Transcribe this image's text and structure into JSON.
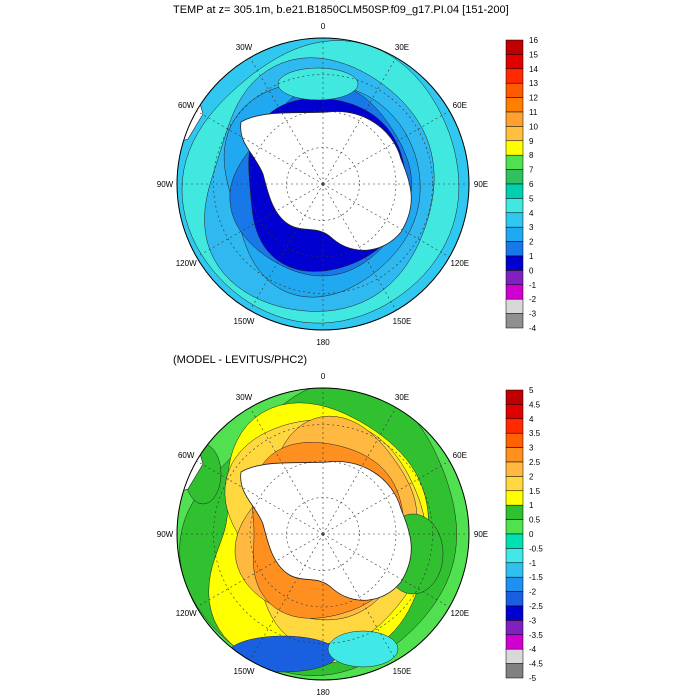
{
  "top_panel": {
    "title": "TEMP at z= 305.1m, b.e21.B1850CLM50SP.f09_g17.PI.04 [151-200]",
    "lon_labels": [
      "0",
      "30E",
      "60E",
      "90E",
      "120E",
      "150E",
      "180",
      "150W",
      "120W",
      "90W",
      "60W",
      "30W"
    ],
    "colorbar": {
      "labels": [
        "16",
        "15",
        "14",
        "13",
        "12",
        "11",
        "10",
        "9",
        "8",
        "7",
        "6",
        "5",
        "4",
        "3",
        "2",
        "1",
        "0",
        "-1",
        "-2",
        "-3",
        "-4"
      ],
      "colors": [
        "#c00000",
        "#e00000",
        "#ff2a00",
        "#ff5a00",
        "#ff8000",
        "#ffa030",
        "#ffc040",
        "#ffff00",
        "#50e050",
        "#30c060",
        "#00d0b0",
        "#40e8e0",
        "#30c8f0",
        "#20a8f0",
        "#1878e8",
        "#0000d0",
        "#8020c0",
        "#d000d0",
        "#d8d8d8",
        "#909090"
      ]
    }
  },
  "bottom_panel": {
    "title": "(MODEL - LEVITUS/PHC2)",
    "lon_labels": [
      "0",
      "30E",
      "60E",
      "90E",
      "120E",
      "150E",
      "180",
      "150W",
      "120W",
      "90W",
      "60W",
      "30W"
    ],
    "colorbar": {
      "labels": [
        "5",
        "4.5",
        "4",
        "3.5",
        "3",
        "2.5",
        "2",
        "1.5",
        "1",
        "0.5",
        "0",
        "-0.5",
        "-1",
        "-1.5",
        "-2",
        "-2.5",
        "-3",
        "-3.5",
        "-4",
        "-4.5",
        "-5"
      ],
      "colors": [
        "#c00000",
        "#e00000",
        "#ff2a00",
        "#ff6000",
        "#ff9020",
        "#ffb840",
        "#ffd840",
        "#ffff00",
        "#30c030",
        "#50e050",
        "#00e0b0",
        "#40e8e8",
        "#30c0f0",
        "#2090f0",
        "#1860e0",
        "#0000d0",
        "#8020c0",
        "#d000d0",
        "#d8d8d8",
        "#808080"
      ]
    }
  }
}
